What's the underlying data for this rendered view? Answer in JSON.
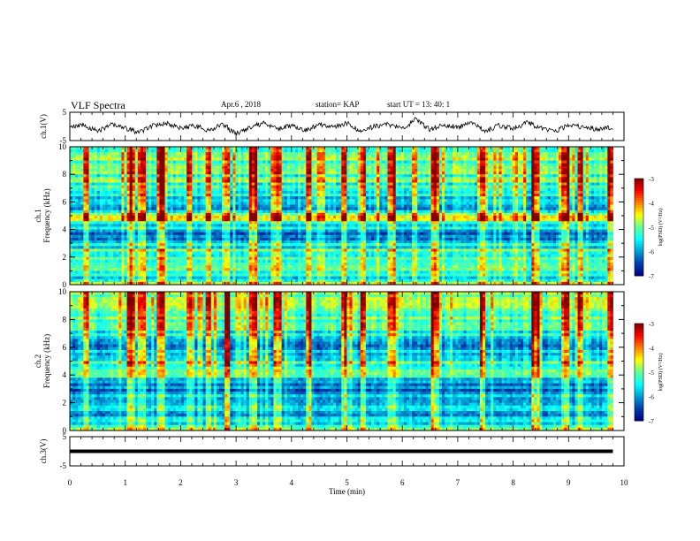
{
  "header": {
    "title": "VLF Spectra",
    "date": "Apr.6 , 2018",
    "station": "station= KAP",
    "start_ut": "start UT =  13: 40: 1"
  },
  "chart_data": [
    {
      "type": "line",
      "panel": "ch1-waveform",
      "ylabel": "ch.1(V)",
      "ylim": [
        -5,
        5
      ],
      "yticks": [
        "5",
        "-5"
      ],
      "xlim": [
        0,
        10
      ],
      "line_color": "#000000",
      "x": [
        0,
        0.25,
        0.5,
        0.75,
        1,
        1.25,
        1.5,
        1.75,
        2,
        2.25,
        2.5,
        2.75,
        3,
        3.25,
        3.5,
        3.75,
        4,
        4.25,
        4.5,
        4.75,
        5,
        5.25,
        5.5,
        5.75,
        6,
        6.25,
        6.5,
        6.75,
        7,
        7.25,
        7.5,
        7.75,
        8,
        8.25,
        8.5,
        8.75,
        9,
        9.25,
        9.5,
        9.75
      ],
      "y": [
        -0.5,
        0.6,
        -1.8,
        0.8,
        -0.6,
        -2.2,
        0.2,
        1.1,
        -0.7,
        0.3,
        -1.5,
        0.9,
        -2.6,
        -0.2,
        1.0,
        -0.8,
        0.4,
        -1.4,
        0.7,
        -0.3,
        1.2,
        -1.9,
        0.1,
        0.8,
        -0.9,
        2.6,
        -1.2,
        0.5,
        -0.4,
        1.0,
        -1.6,
        0.3,
        -0.7,
        1.3,
        -0.5,
        -1.8,
        0.6,
        -0.2,
        -0.9,
        -0.4
      ]
    },
    {
      "type": "heatmap",
      "panel": "ch1-spectrogram",
      "ylabel": "ch.1\nFrequency (kHz)",
      "ylim": [
        0,
        10
      ],
      "yticks": [
        "0",
        "2",
        "4",
        "6",
        "8",
        "10"
      ],
      "xlim": [
        0,
        10
      ],
      "colorbar": {
        "label": "log(PSD) (V²/Hz)",
        "range": [
          -7,
          -3
        ],
        "ticks": [
          "-3",
          "-4",
          "-5",
          "-6",
          "-7"
        ]
      },
      "profile": [
        {
          "f": 0.2,
          "v": -5.2
        },
        {
          "f": 0.5,
          "v": -6.1
        },
        {
          "f": 1.0,
          "v": -5.0
        },
        {
          "f": 1.5,
          "v": -5.4
        },
        {
          "f": 2.0,
          "v": -5.5
        },
        {
          "f": 2.5,
          "v": -5.2
        },
        {
          "f": 3.0,
          "v": -5.9
        },
        {
          "f": 3.3,
          "v": -6.1
        },
        {
          "f": 3.7,
          "v": -6.0
        },
        {
          "f": 4.2,
          "v": -5.7
        },
        {
          "f": 4.6,
          "v": -4.9
        },
        {
          "f": 5.0,
          "v": -4.2
        },
        {
          "f": 5.4,
          "v": -6.1
        },
        {
          "f": 6.0,
          "v": -6.2
        },
        {
          "f": 6.5,
          "v": -5.7
        },
        {
          "f": 7.0,
          "v": -5.3
        },
        {
          "f": 7.5,
          "v": -5.2
        },
        {
          "f": 8.0,
          "v": -5.1
        },
        {
          "f": 8.5,
          "v": -5.0
        },
        {
          "f": 9.0,
          "v": -5.1
        },
        {
          "f": 9.5,
          "v": -5.0
        },
        {
          "f": 9.9,
          "v": -4.9
        }
      ],
      "bright_times_min": [
        0.3,
        1.1,
        1.3,
        1.65,
        2.15,
        2.5,
        2.85,
        3.3,
        3.75,
        4.3,
        4.95,
        5.3,
        5.8,
        6.6,
        7.45,
        8.4,
        8.95,
        9.2,
        9.75
      ]
    },
    {
      "type": "heatmap",
      "panel": "ch2-spectrogram",
      "ylabel": "ch.2\nFrequency (kHz)",
      "ylim": [
        0,
        10
      ],
      "yticks": [
        "0",
        "2",
        "4",
        "6",
        "8",
        "10"
      ],
      "xlim": [
        0,
        10
      ],
      "colorbar": {
        "label": "log(PSD) (V²/Hz)",
        "range": [
          -7,
          -3
        ],
        "ticks": [
          "-3",
          "-4",
          "-5",
          "-6",
          "-7"
        ]
      },
      "profile": [
        {
          "f": 0.2,
          "v": -5.1
        },
        {
          "f": 0.5,
          "v": -5.6
        },
        {
          "f": 1.0,
          "v": -5.8
        },
        {
          "f": 1.5,
          "v": -5.9
        },
        {
          "f": 2.0,
          "v": -6.2
        },
        {
          "f": 2.5,
          "v": -6.0
        },
        {
          "f": 3.0,
          "v": -6.1
        },
        {
          "f": 3.3,
          "v": -6.2
        },
        {
          "f": 3.7,
          "v": -5.8
        },
        {
          "f": 4.2,
          "v": -4.8
        },
        {
          "f": 4.6,
          "v": -5.4
        },
        {
          "f": 5.0,
          "v": -5.3
        },
        {
          "f": 5.4,
          "v": -6.0
        },
        {
          "f": 6.0,
          "v": -6.1
        },
        {
          "f": 6.5,
          "v": -5.8
        },
        {
          "f": 7.0,
          "v": -5.4
        },
        {
          "f": 7.5,
          "v": -5.3
        },
        {
          "f": 8.0,
          "v": -5.1
        },
        {
          "f": 8.5,
          "v": -5.0
        },
        {
          "f": 9.0,
          "v": -5.0
        },
        {
          "f": 9.5,
          "v": -4.9
        },
        {
          "f": 9.9,
          "v": -4.8
        }
      ],
      "bright_times_min": [
        0.3,
        1.1,
        1.3,
        1.65,
        2.15,
        2.5,
        2.85,
        3.3,
        3.75,
        4.3,
        4.95,
        5.3,
        5.8,
        6.6,
        7.45,
        8.4,
        8.95,
        9.2,
        9.75
      ]
    },
    {
      "type": "line",
      "panel": "ch3-waveform",
      "ylabel": "ch.3(V)",
      "ylim": [
        -5,
        5
      ],
      "yticks": [
        "5",
        "-5"
      ],
      "xlim": [
        0,
        10
      ],
      "line_color": "#000000",
      "x": [
        0,
        9.8
      ],
      "y": [
        0,
        0
      ]
    }
  ],
  "x_axis": {
    "label": "Time (min)",
    "ticks": [
      "0",
      "1",
      "2",
      "3",
      "4",
      "5",
      "6",
      "7",
      "8",
      "9",
      "10"
    ]
  }
}
